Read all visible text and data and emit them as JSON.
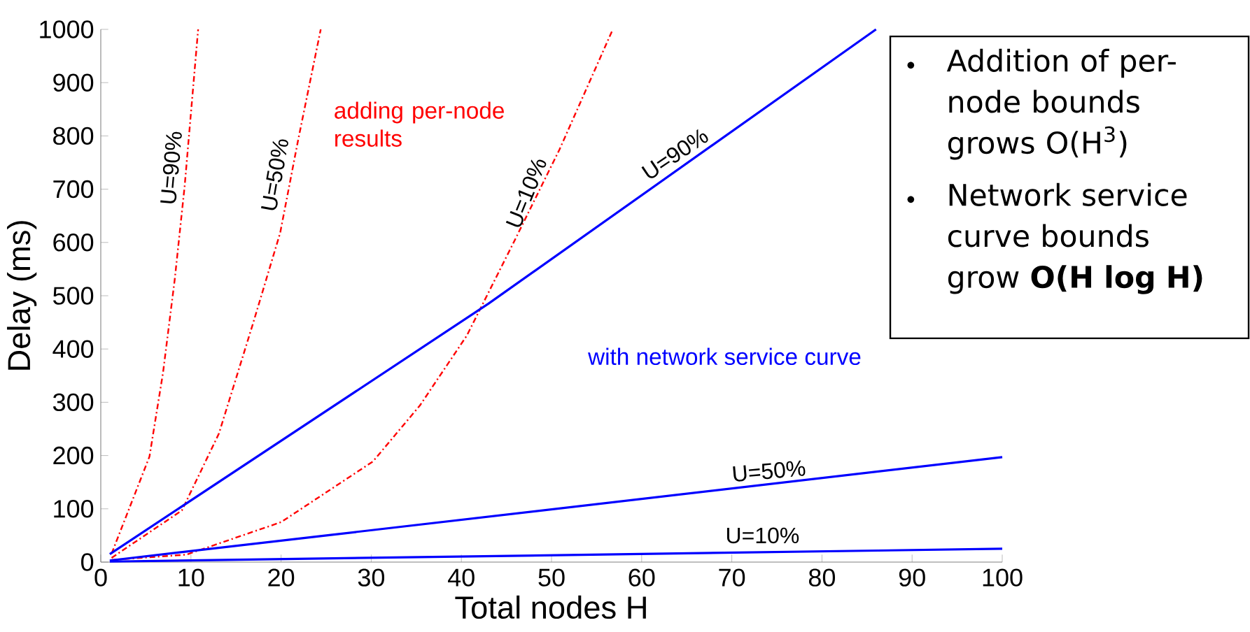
{
  "chart_data": {
    "type": "line",
    "xlabel": "Total nodes H",
    "ylabel": "Delay (ms)",
    "xlim": [
      0,
      100
    ],
    "ylim": [
      0,
      1000
    ],
    "xticks": [
      0,
      10,
      20,
      30,
      40,
      50,
      60,
      70,
      80,
      90,
      100
    ],
    "yticks": [
      0,
      100,
      200,
      300,
      400,
      500,
      600,
      700,
      800,
      900,
      1000
    ],
    "legend": false,
    "grid": false,
    "marker": "none",
    "series": [
      {
        "name": "U=90%",
        "color": "#ff0000",
        "line_style": "dashed",
        "x": [
          1.2,
          5.4,
          6.9,
          8.2,
          9.3,
          10.8
        ],
        "values": [
          16,
          198,
          355,
          530,
          705,
          1000
        ]
      },
      {
        "name": "U=50%",
        "color": "#ff0000",
        "line_style": "dashed",
        "x": [
          1.2,
          9.0,
          13.1,
          16.8,
          19.9,
          21.9,
          24.4
        ],
        "values": [
          8,
          97,
          241,
          443,
          618,
          793,
          1000
        ]
      },
      {
        "name": "U=10%",
        "color": "#ff0000",
        "line_style": "dashed",
        "x": [
          1.2,
          9.5,
          20.0,
          30.2,
          35.4,
          40.6,
          45.8,
          50.9,
          56.8
        ],
        "values": [
          4,
          14,
          75,
          189,
          294,
          425,
          600,
          775,
          1000
        ]
      },
      {
        "name": "U=90%",
        "color": "#0000ff",
        "line_style": "solid",
        "x": [
          1,
          43,
          86
        ],
        "values": [
          15,
          485,
          1000
        ]
      },
      {
        "name": "U=50%",
        "color": "#0000ff",
        "line_style": "solid",
        "x": [
          1,
          100
        ],
        "values": [
          3,
          197
        ]
      },
      {
        "name": "U=10%",
        "color": "#0000ff",
        "line_style": "solid",
        "x": [
          1,
          100
        ],
        "values": [
          1,
          25
        ]
      }
    ],
    "annotations": [
      "adding per-node results",
      "with network service curve",
      "Addition of per-node bounds grows O(H$^{3}$)",
      "Network service curve bounds grow **O(H log H)**"
    ]
  }
}
